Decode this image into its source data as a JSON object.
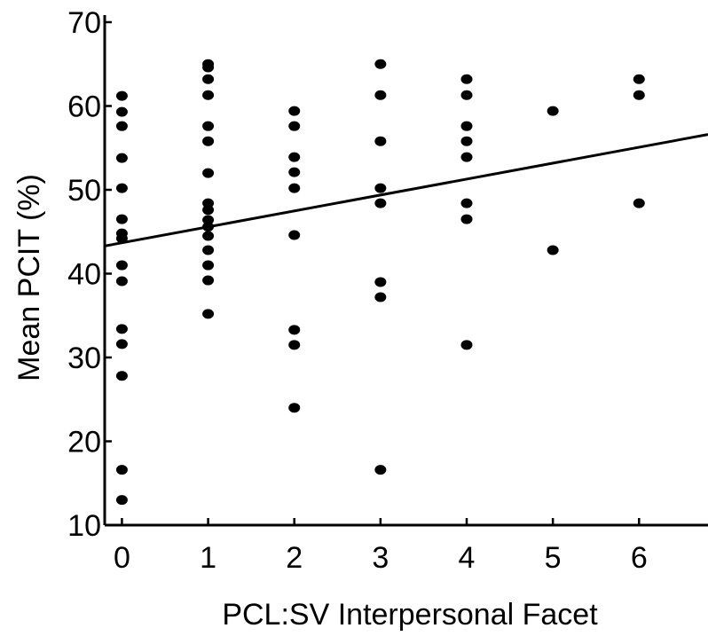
{
  "chart_data": {
    "type": "scatter",
    "title": "",
    "xlabel": "PCL:SV Interpersonal Facet",
    "ylabel": "Mean PCIT (%)",
    "xlim": [
      -0.2,
      6.8
    ],
    "ylim": [
      10,
      70
    ],
    "xticks": [
      0,
      1,
      2,
      3,
      4,
      5,
      6
    ],
    "yticks": [
      10,
      20,
      30,
      40,
      50,
      60,
      70
    ],
    "grid": false,
    "legend": "none",
    "colors": {
      "points": "#000000",
      "axes": "#000000",
      "fit_line": "#000000"
    },
    "series": [
      {
        "points": [
          [
            0,
            61.2
          ],
          [
            0,
            59.3
          ],
          [
            0,
            57.6
          ],
          [
            0,
            53.8
          ],
          [
            0,
            50.2
          ],
          [
            0,
            46.5
          ],
          [
            0,
            44.8
          ],
          [
            0,
            44.2
          ],
          [
            0,
            41.0
          ],
          [
            0,
            39.1
          ],
          [
            0,
            33.4
          ],
          [
            0,
            31.6
          ],
          [
            0,
            27.8
          ],
          [
            0,
            16.6
          ],
          [
            0,
            13.0
          ],
          [
            1,
            65.0
          ],
          [
            1,
            64.6
          ],
          [
            1,
            63.2
          ],
          [
            1,
            61.3
          ],
          [
            1,
            57.6
          ],
          [
            1,
            55.8
          ],
          [
            1,
            52.0
          ],
          [
            1,
            48.4
          ],
          [
            1,
            47.6
          ],
          [
            1,
            46.4
          ],
          [
            1,
            45.6
          ],
          [
            1,
            44.5
          ],
          [
            1,
            42.8
          ],
          [
            1,
            41.0
          ],
          [
            1,
            39.2
          ],
          [
            1,
            35.2
          ],
          [
            2,
            59.4
          ],
          [
            2,
            57.6
          ],
          [
            2,
            53.9
          ],
          [
            2,
            52.1
          ],
          [
            2,
            50.2
          ],
          [
            2,
            44.6
          ],
          [
            2,
            33.3
          ],
          [
            2,
            31.5
          ],
          [
            2,
            24.0
          ],
          [
            3,
            65.0
          ],
          [
            3,
            61.3
          ],
          [
            3,
            55.8
          ],
          [
            3,
            50.2
          ],
          [
            3,
            48.4
          ],
          [
            3,
            39.0
          ],
          [
            3,
            37.2
          ],
          [
            3,
            16.6
          ],
          [
            4,
            63.2
          ],
          [
            4,
            61.3
          ],
          [
            4,
            57.6
          ],
          [
            4,
            55.8
          ],
          [
            4,
            53.9
          ],
          [
            4,
            48.4
          ],
          [
            4,
            46.5
          ],
          [
            4,
            31.5
          ],
          [
            5,
            59.4
          ],
          [
            5,
            42.8
          ],
          [
            6,
            63.2
          ],
          [
            6,
            61.3
          ],
          [
            6,
            48.4
          ]
        ]
      }
    ],
    "fit_line": {
      "x": [
        -0.2,
        6.8
      ],
      "y": [
        43.3,
        56.6
      ]
    }
  }
}
